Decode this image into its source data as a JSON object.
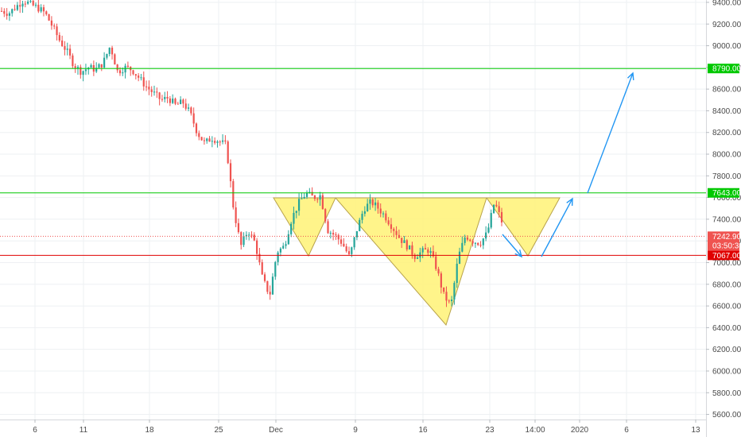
{
  "chart_data": {
    "type": "candlestick",
    "x_ticks": [
      "6",
      "11",
      "18",
      "25",
      "Dec",
      "9",
      "16",
      "23",
      "14:00",
      "2020",
      "6",
      "13"
    ],
    "y_ticks": [
      "9400.00",
      "9200.00",
      "9000.00",
      "8800.00",
      "8600.00",
      "8400.00",
      "8200.00",
      "8000.00",
      "7800.00",
      "7600.00",
      "7400.00",
      "7200.00",
      "7000.00",
      "6800.00",
      "6600.00",
      "6400.00",
      "6200.00",
      "6000.00",
      "5800.00",
      "5600.00"
    ],
    "y_tick_values": [
      9400,
      9200,
      9000,
      8800,
      8600,
      8400,
      8200,
      8000,
      7800,
      7600,
      7400,
      7200,
      7000,
      6800,
      6600,
      6400,
      6200,
      6000,
      5800,
      5600
    ],
    "ylim": [
      5540,
      9440
    ],
    "grid": true,
    "close_trend": [
      9320,
      9300,
      9360,
      9420,
      9380,
      9350,
      9300,
      9180,
      9050,
      8950,
      8820,
      8760,
      8800,
      8780,
      8840,
      9000,
      8760,
      8800,
      8780,
      8700,
      8620,
      8560,
      8500,
      8520,
      8450,
      8480,
      8380,
      8200,
      8100,
      8150,
      8120,
      8080,
      7500,
      7150,
      7300,
      7180,
      6850,
      6700,
      7100,
      7150,
      7400,
      7550,
      7640,
      7600,
      7620,
      7300,
      7250,
      7180,
      7050,
      7300,
      7500,
      7560,
      7500,
      7420,
      7320,
      7220,
      7150,
      7060,
      7100,
      7120,
      6950,
      6700,
      6600,
      7050,
      7250,
      7200,
      7180,
      7270,
      7560,
      7380
    ],
    "horizontal_levels": [
      {
        "value": 8790,
        "label": "8790.00",
        "color": "#00c800"
      },
      {
        "value": 7643,
        "label": "7643.00",
        "color": "#00c800"
      },
      {
        "value": 7067,
        "label": "7067.00",
        "color": "#e00000"
      }
    ],
    "current_price": {
      "value": 7242.9,
      "label": "7242.90",
      "countdown": "03:50:38",
      "color": "#ef5350"
    },
    "drawings": {
      "triangles_fill": "#fff275",
      "triangles_stroke": "#b8a24a",
      "arrows_color": "#2196f3"
    },
    "colors": {
      "up": "#26a69a",
      "down": "#ef5350"
    }
  }
}
